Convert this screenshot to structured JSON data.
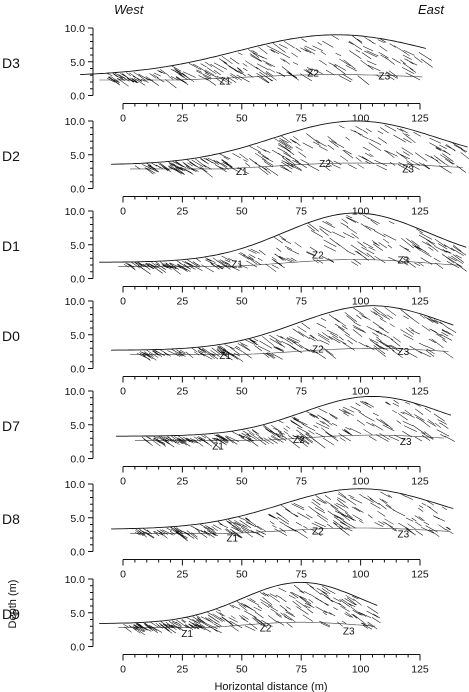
{
  "header": {
    "west": "West",
    "east": "East"
  },
  "axes": {
    "xlabel": "Horizontal distance (m)",
    "ylabel": "Depth (m)",
    "xticks": [
      0,
      25,
      50,
      75,
      100,
      125
    ],
    "xtick_labels": [
      "0",
      "25",
      "50",
      "75",
      "100",
      "125"
    ],
    "yticks": [
      0,
      5,
      10
    ],
    "ytick_labels": [
      "0.0",
      "5.0",
      "10.0"
    ]
  },
  "panels": [
    {
      "id": "D3",
      "label": "D3",
      "zones": [
        "Z1",
        "Z2",
        "Z3"
      ]
    },
    {
      "id": "D2",
      "label": "D2",
      "zones": [
        "Z1",
        "Z2",
        "Z3"
      ]
    },
    {
      "id": "D1",
      "label": "D1",
      "zones": [
        "Z1",
        "Z2",
        "Z3"
      ]
    },
    {
      "id": "D0",
      "label": "D0",
      "zones": [
        "Z1",
        "Z2",
        "Z3"
      ]
    },
    {
      "id": "D7",
      "label": "D7",
      "zones": [
        "Z1",
        "Z2",
        "Z3"
      ]
    },
    {
      "id": "D8",
      "label": "D8",
      "zones": [
        "Z1",
        "Z2",
        "Z3"
      ]
    },
    {
      "id": "D9",
      "label": "D9",
      "zones": [
        "Z1",
        "Z2",
        "Z3"
      ]
    }
  ],
  "colors": {
    "ink": "#111111",
    "background": "#ffffff"
  }
}
